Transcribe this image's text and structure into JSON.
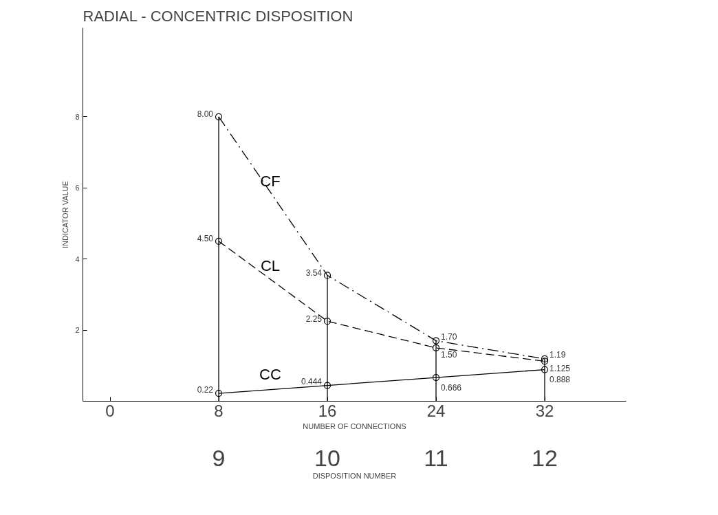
{
  "chart_data": {
    "type": "line",
    "title": "RADIAL - CONCENTRIC DISPOSITION",
    "xlabel": "NUMBER OF CONNECTIONS",
    "ylabel": "INDICATOR VALUE",
    "x": [
      8,
      16,
      24,
      32
    ],
    "series": [
      {
        "name": "CF",
        "color": "#000000",
        "line_style": "dashdot",
        "values": [
          8.0,
          3.54,
          1.7,
          1.19
        ],
        "value_labels": [
          "8.00",
          "3.54",
          "1.70",
          "1.19"
        ]
      },
      {
        "name": "CL",
        "color": "#000000",
        "line_style": "dashed",
        "values": [
          4.5,
          2.25,
          1.5,
          1.125
        ],
        "value_labels": [
          "4.50",
          "2.25",
          "1.50",
          "1.125"
        ]
      },
      {
        "name": "CC",
        "color": "#000000",
        "line_style": "solid",
        "values": [
          0.22,
          0.444,
          0.666,
          0.888
        ],
        "value_labels": [
          "0.22",
          "0.444",
          "0.666",
          "0.888"
        ]
      }
    ],
    "xlim": [
      -2,
      38
    ],
    "ylim": [
      0,
      10.5
    ],
    "xticks": [
      0,
      8,
      16,
      24,
      32
    ],
    "yticks": [
      2,
      4,
      6,
      8
    ],
    "x2label": "DISPOSITION NUMBER",
    "x2lim": [
      7.75,
      12.75
    ],
    "x2ticks": [
      9,
      10,
      11,
      12
    ],
    "ref_lines": [
      {
        "axis": "x",
        "value": 8
      },
      {
        "axis": "x",
        "value": 16
      },
      {
        "axis": "x",
        "value": 24
      },
      {
        "axis": "x",
        "value": 32
      }
    ],
    "marker": "circle",
    "grid": false
  }
}
